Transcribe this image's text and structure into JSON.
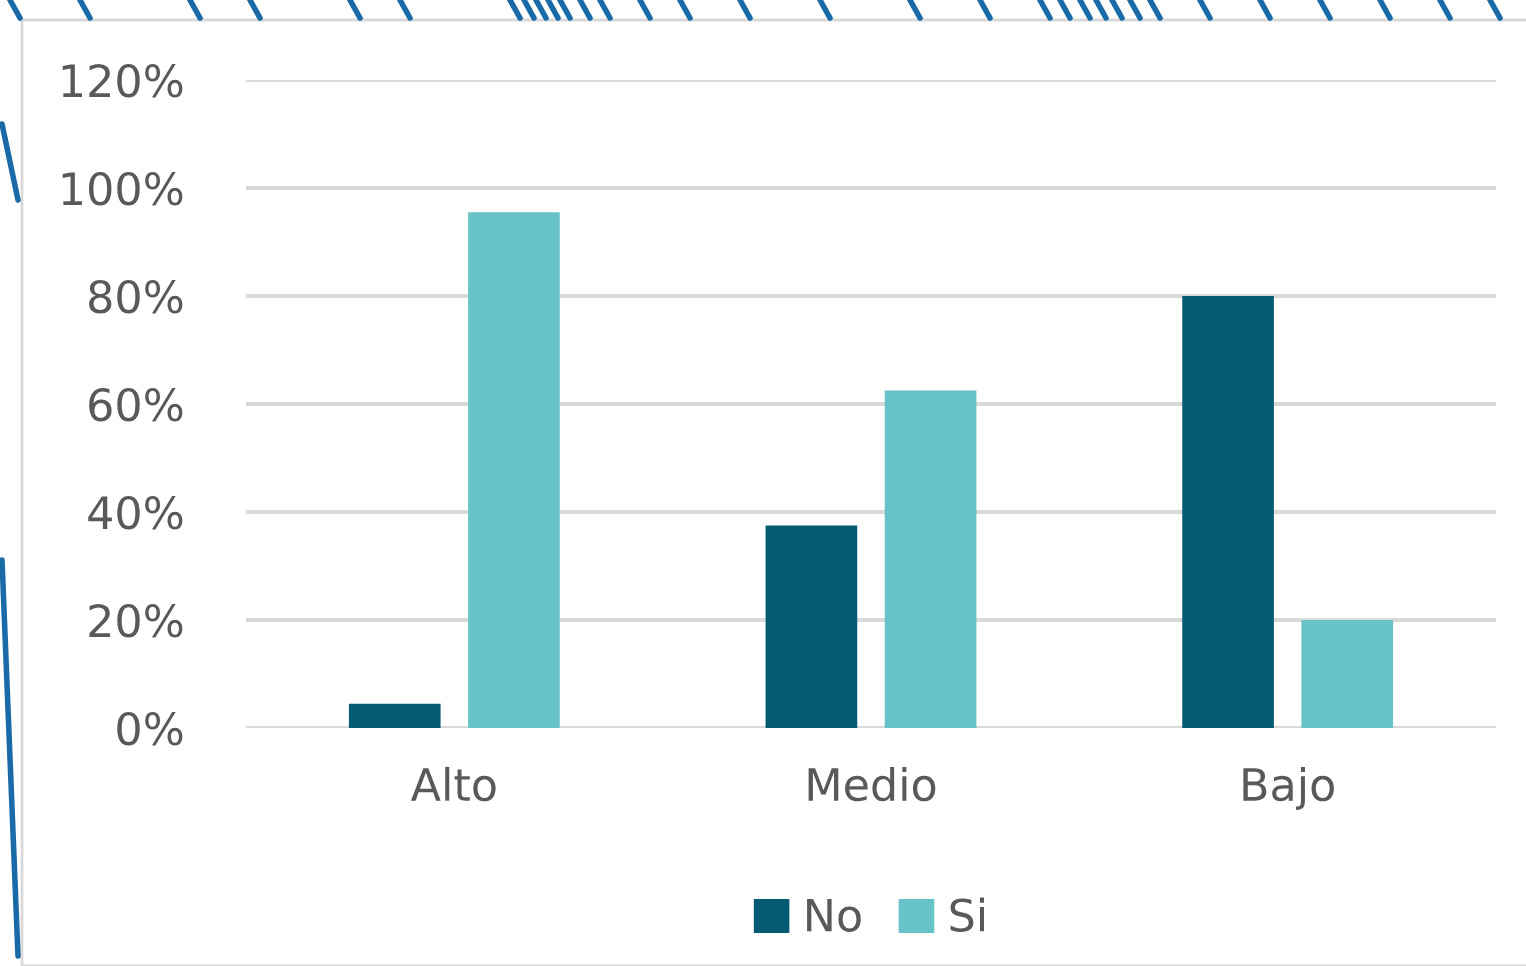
{
  "chart_data": {
    "type": "bar",
    "categories": [
      "Alto",
      "Medio",
      "Bajo"
    ],
    "series": [
      {
        "name": "No",
        "color": "#065b74",
        "values": [
          4.5,
          37.5,
          80
        ]
      },
      {
        "name": "Si",
        "color": "#67c3c8",
        "values": [
          95.5,
          62.5,
          20
        ]
      }
    ],
    "ylim": [
      0,
      120
    ],
    "yticks": [
      {
        "value": 0,
        "label": "0%"
      },
      {
        "value": 20,
        "label": "20%"
      },
      {
        "value": 40,
        "label": "40%"
      },
      {
        "value": 60,
        "label": "60%"
      },
      {
        "value": 80,
        "label": "80%"
      },
      {
        "value": 100,
        "label": "100%"
      },
      {
        "value": 120,
        "label": "120%"
      }
    ],
    "grid": "y",
    "legend": "bottom"
  }
}
